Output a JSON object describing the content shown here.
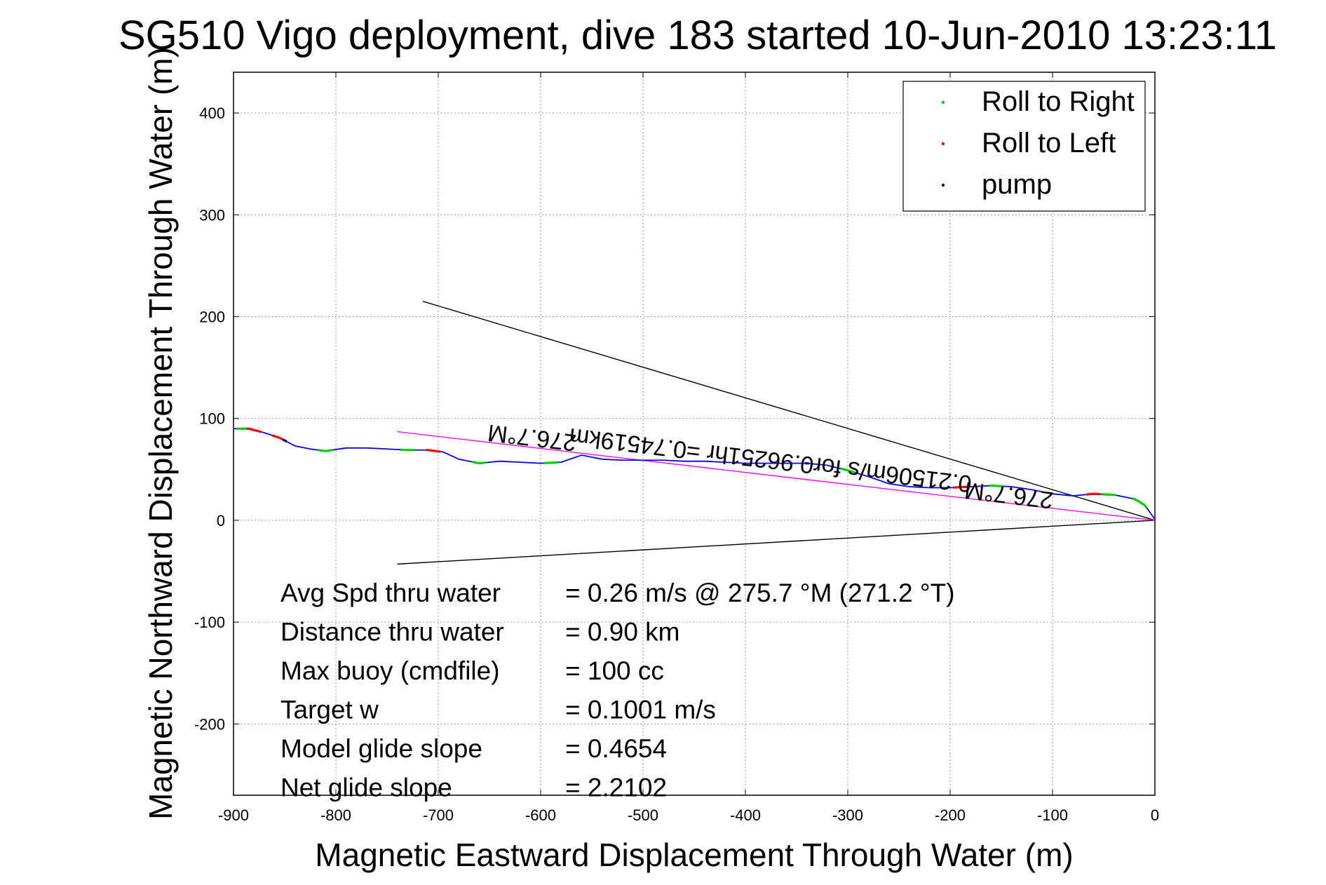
{
  "chart_data": {
    "type": "line",
    "title": "SG510 Vigo deployment, dive 183 started 10-Jun-2010 13:23:11",
    "xlabel": "Magnetic Eastward Displacement Through Water (m)",
    "ylabel": "Magnetic Northward Displacement Through Water (m)",
    "xlim": [
      -900,
      0
    ],
    "ylim": [
      -270,
      440
    ],
    "xticks": [
      -900,
      -800,
      -700,
      -600,
      -500,
      -400,
      -300,
      -200,
      -100,
      0
    ],
    "yticks": [
      -200,
      -100,
      0,
      100,
      200,
      300,
      400
    ],
    "grid": true,
    "legend": {
      "placement": "top-right",
      "entries": [
        {
          "label": "Roll to Right",
          "color": "#00cc00"
        },
        {
          "label": "Roll to Left",
          "color": "#ff0000"
        },
        {
          "label": "pump",
          "color": "#000080"
        }
      ]
    },
    "series": [
      {
        "color": "#0000ff",
        "x": [
          -900,
          -885,
          -870,
          -855,
          -840,
          -825,
          -810,
          -790,
          -770,
          -750,
          -730,
          -710,
          -695,
          -680,
          -660,
          -640,
          -620,
          -600,
          -580,
          -560,
          -540,
          -520,
          -500,
          -480,
          -460,
          -440,
          -420,
          -400,
          -380,
          -360,
          -340,
          -320,
          -300,
          -280,
          -260,
          -240,
          -220,
          -200,
          -180,
          -160,
          -140,
          -120,
          -100,
          -80,
          -60,
          -40,
          -20,
          -10,
          0
        ],
        "y": [
          90,
          90,
          86,
          81,
          73,
          70,
          68,
          71,
          71,
          70,
          69,
          69,
          67,
          60,
          56,
          58,
          57,
          56,
          57,
          64,
          60,
          59,
          59,
          59,
          58,
          58,
          57,
          56,
          56,
          56,
          56,
          54,
          49,
          43,
          36,
          33,
          32,
          32,
          33,
          34,
          33,
          30,
          26,
          24,
          26,
          25,
          21,
          15,
          1
        ]
      }
    ],
    "markers": {
      "roll_right_x": [
        -890,
        -810,
        -730,
        -660,
        -590,
        -300,
        -155,
        -45,
        -15
      ],
      "roll_left_x": [
        -880,
        -855,
        -705,
        -190,
        -60
      ],
      "pump_x": [
        -850,
        -340
      ]
    },
    "reference_lines": [
      {
        "color": "#000000",
        "from": [
          -715,
          215
        ],
        "to": [
          0,
          0
        ]
      },
      {
        "color": "#000000",
        "from": [
          -740,
          -43
        ],
        "to": [
          0,
          0
        ]
      },
      {
        "color": "#ff00ff",
        "from": [
          -740,
          87
        ],
        "to": [
          0,
          0
        ]
      }
    ],
    "rotated_annotations": [
      {
        "text": "276.7°M",
        "angle": 186.8
      },
      {
        "text": "276.7°M",
        "angle": 186.8
      },
      {
        "text": "0.21506m/s for0.96251hr =0.74519km",
        "angle": 186.8
      }
    ],
    "stats": [
      {
        "label": "Avg Spd thru water",
        "value": "=  0.26 m/s @ 275.7 °M (271.2 °T)"
      },
      {
        "label": "Distance thru water",
        "value": "=  0.90 km"
      },
      {
        "label": "Max buoy (cmdfile)",
        "value": "= 100 cc"
      },
      {
        "label": "Target w",
        "value": "= 0.1001 m/s"
      },
      {
        "label": "Model glide slope",
        "value": "= 0.4654"
      },
      {
        "label": "Net glide slope",
        "value": "= 2.2102"
      }
    ]
  }
}
